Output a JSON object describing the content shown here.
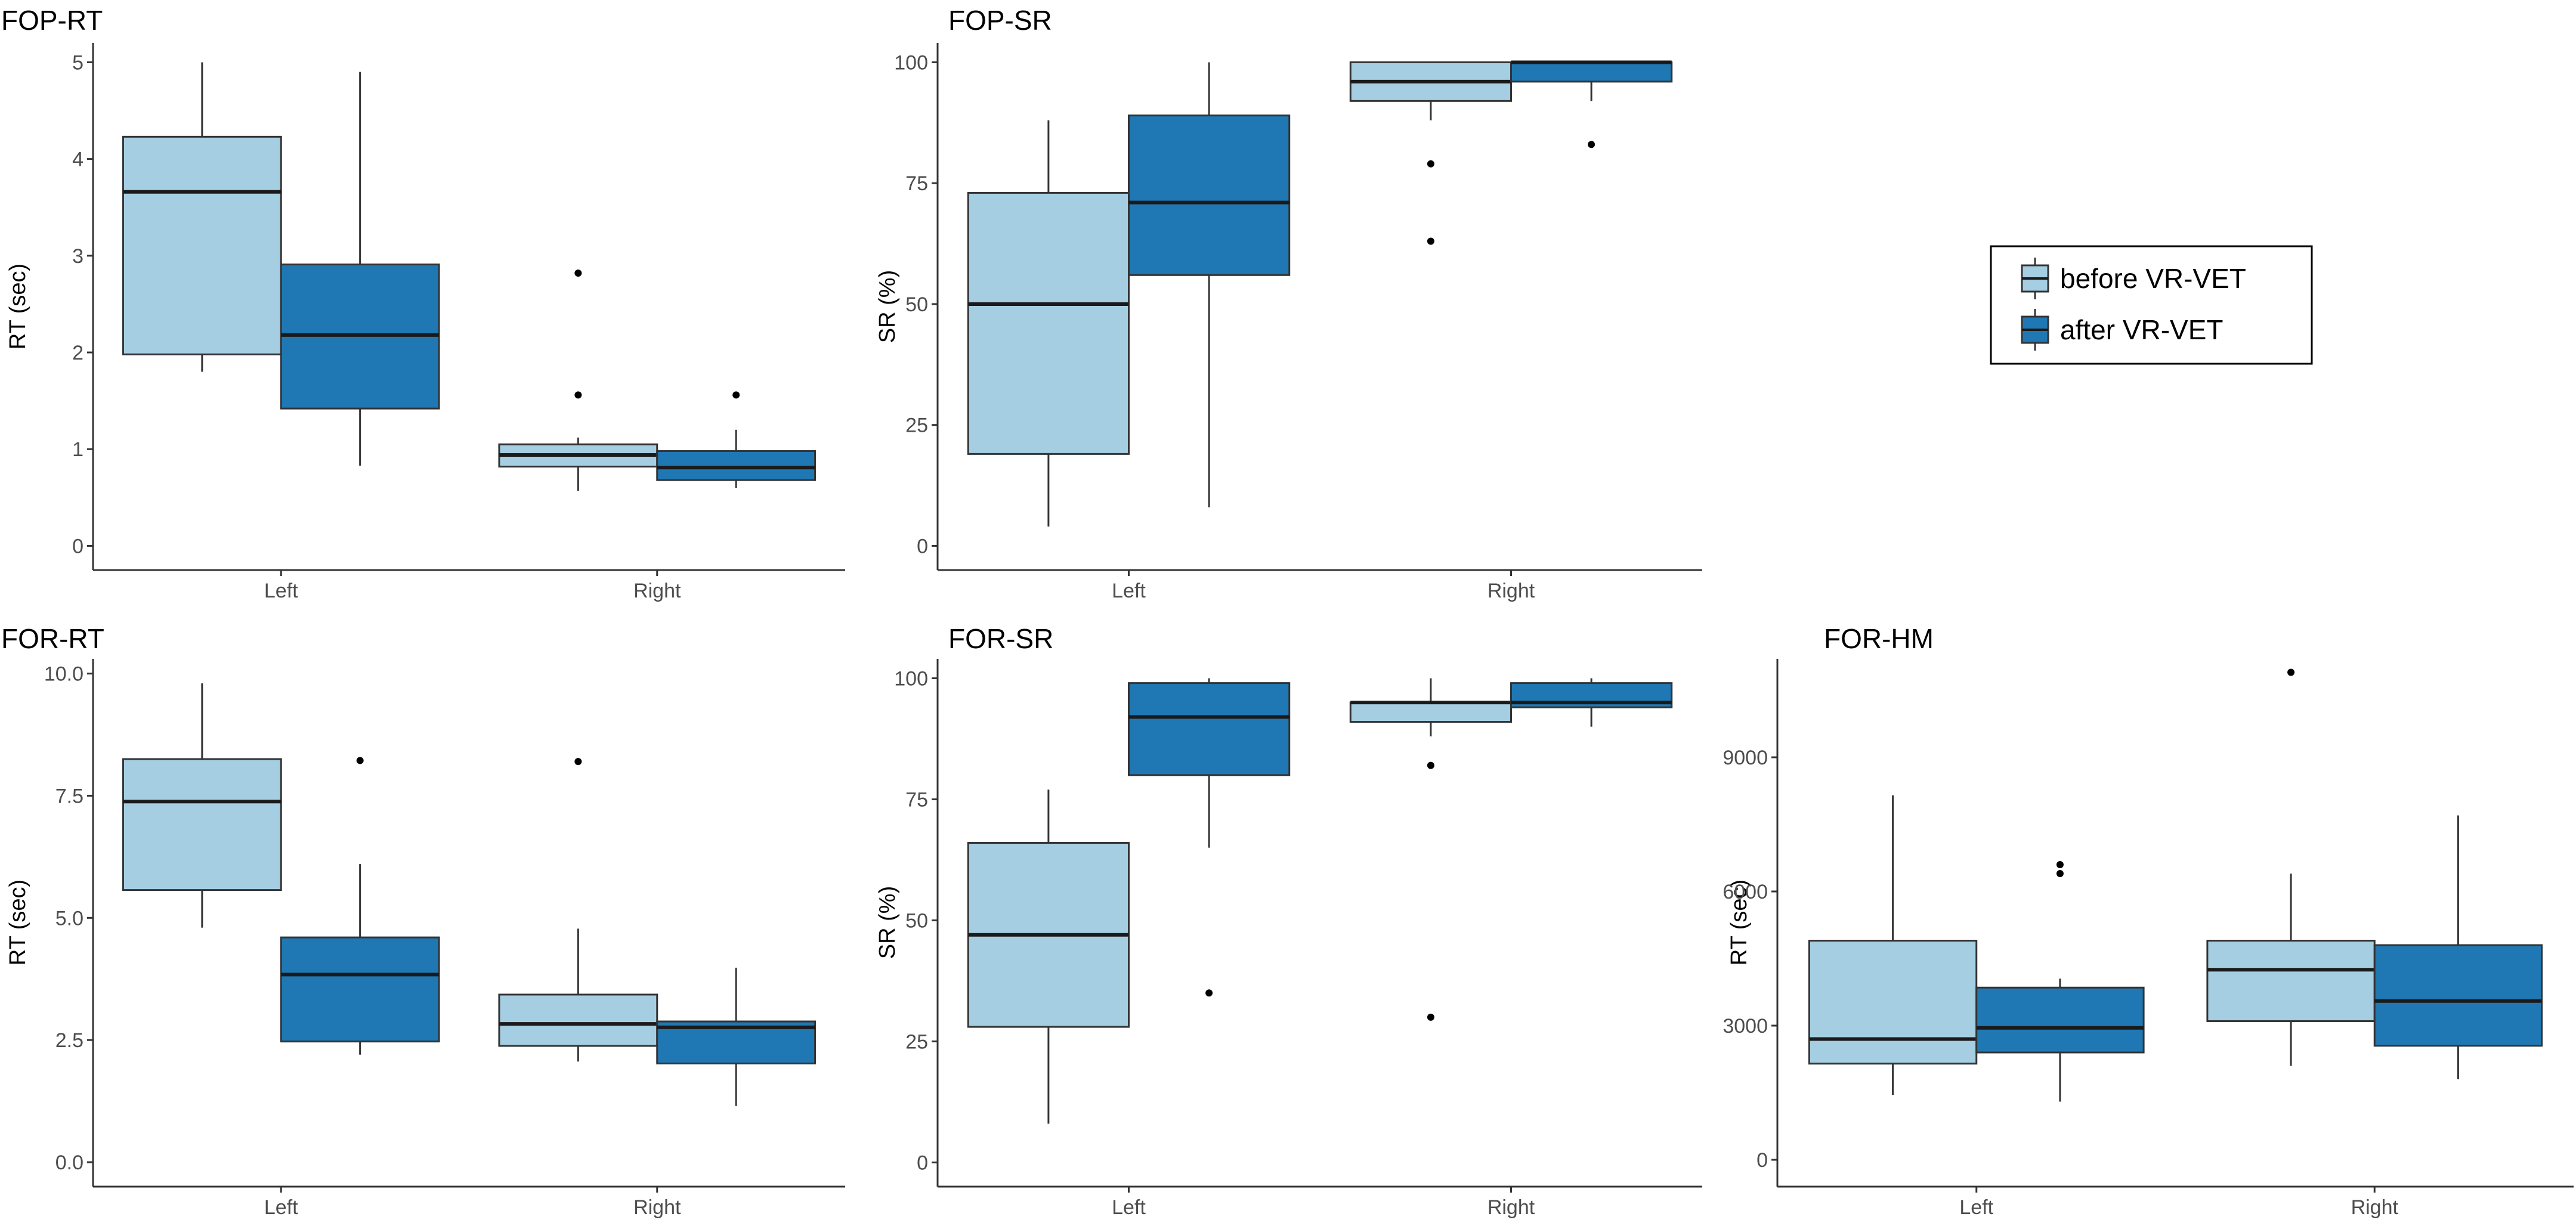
{
  "colors": {
    "before": "#a6cee3",
    "after": "#1f78b4",
    "axis": "#333333",
    "whisker": "#333333",
    "median": "#1a1a1a"
  },
  "legend": {
    "items": [
      {
        "key": "before",
        "label": "before VR-VET"
      },
      {
        "key": "after",
        "label": "after VR-VET"
      }
    ]
  },
  "chart_data": [
    {
      "type": "box",
      "title": "FOP-RT",
      "ylabel": "RT (sec)",
      "xlabel": "",
      "categories": [
        "Left",
        "Right"
      ],
      "ylim": [
        -0.25,
        5.2
      ],
      "yticks": [
        0,
        1,
        2,
        3,
        4,
        5
      ],
      "ytick_labels": [
        "0",
        "1",
        "2",
        "3",
        "4",
        "5"
      ],
      "series": [
        {
          "name": "before VR-VET",
          "key": "before",
          "boxes": [
            {
              "category": "Left",
              "min": 1.8,
              "q1": 1.98,
              "median": 3.66,
              "q3": 4.23,
              "max": 5.0,
              "outliers": []
            },
            {
              "category": "Right",
              "min": 0.57,
              "q1": 0.82,
              "median": 0.94,
              "q3": 1.05,
              "max": 1.12,
              "outliers": [
                2.82,
                1.56
              ]
            }
          ]
        },
        {
          "name": "after VR-VET",
          "key": "after",
          "boxes": [
            {
              "category": "Left",
              "min": 0.83,
              "q1": 1.42,
              "median": 2.18,
              "q3": 2.91,
              "max": 4.9,
              "outliers": []
            },
            {
              "category": "Right",
              "min": 0.6,
              "q1": 0.68,
              "median": 0.81,
              "q3": 0.98,
              "max": 1.2,
              "outliers": [
                1.56
              ]
            }
          ]
        }
      ]
    },
    {
      "type": "box",
      "title": "FOP-SR",
      "ylabel": "SR (%)",
      "xlabel": "",
      "categories": [
        "Left",
        "Right"
      ],
      "ylim": [
        -5,
        104
      ],
      "yticks": [
        0,
        25,
        50,
        75,
        100
      ],
      "ytick_labels": [
        "0",
        "25",
        "50",
        "75",
        "100"
      ],
      "series": [
        {
          "name": "before VR-VET",
          "key": "before",
          "boxes": [
            {
              "category": "Left",
              "min": 4,
              "q1": 19,
              "median": 50,
              "q3": 73,
              "max": 88,
              "outliers": []
            },
            {
              "category": "Right",
              "min": 88,
              "q1": 92,
              "median": 96,
              "q3": 100,
              "max": 100,
              "outliers": [
                79,
                63
              ]
            }
          ]
        },
        {
          "name": "after VR-VET",
          "key": "after",
          "boxes": [
            {
              "category": "Left",
              "min": 8,
              "q1": 56,
              "median": 71,
              "q3": 89,
              "max": 100,
              "outliers": []
            },
            {
              "category": "Right",
              "min": 92,
              "q1": 96,
              "median": 100,
              "q3": 100,
              "max": 100,
              "outliers": [
                83
              ]
            }
          ]
        }
      ]
    },
    {
      "type": "box",
      "title": "FOR-RT",
      "ylabel": "RT (sec)",
      "xlabel": "",
      "categories": [
        "Left",
        "Right"
      ],
      "ylim": [
        -0.5,
        10.3
      ],
      "yticks": [
        0,
        2.5,
        5,
        7.5,
        10
      ],
      "ytick_labels": [
        "0.0",
        "2.5",
        "5.0",
        "7.5",
        "10.0"
      ],
      "series": [
        {
          "name": "before VR-VET",
          "key": "before",
          "boxes": [
            {
              "category": "Left",
              "min": 4.8,
              "q1": 5.57,
              "median": 7.38,
              "q3": 8.25,
              "max": 9.8,
              "outliers": []
            },
            {
              "category": "Right",
              "min": 2.06,
              "q1": 2.38,
              "median": 2.83,
              "q3": 3.43,
              "max": 4.78,
              "outliers": [
                8.2
              ]
            }
          ]
        },
        {
          "name": "after VR-VET",
          "key": "after",
          "boxes": [
            {
              "category": "Left",
              "min": 2.2,
              "q1": 2.47,
              "median": 3.84,
              "q3": 4.6,
              "max": 6.1,
              "outliers": [
                8.22
              ]
            },
            {
              "category": "Right",
              "min": 1.15,
              "q1": 2.02,
              "median": 2.76,
              "q3": 2.88,
              "max": 3.98,
              "outliers": []
            }
          ]
        }
      ]
    },
    {
      "type": "box",
      "title": "FOR-SR",
      "ylabel": "SR (%)",
      "xlabel": "",
      "categories": [
        "Left",
        "Right"
      ],
      "ylim": [
        -5,
        104
      ],
      "yticks": [
        0,
        25,
        50,
        75,
        100
      ],
      "ytick_labels": [
        "0",
        "25",
        "50",
        "75",
        "100"
      ],
      "series": [
        {
          "name": "before VR-VET",
          "key": "before",
          "boxes": [
            {
              "category": "Left",
              "min": 8,
              "q1": 28,
              "median": 47,
              "q3": 66,
              "max": 77,
              "outliers": []
            },
            {
              "category": "Right",
              "min": 88,
              "q1": 91,
              "median": 95,
              "q3": 95,
              "max": 100,
              "outliers": [
                82,
                30
              ]
            }
          ]
        },
        {
          "name": "after VR-VET",
          "key": "after",
          "boxes": [
            {
              "category": "Left",
              "min": 65,
              "q1": 80,
              "median": 92,
              "q3": 99,
              "max": 100,
              "outliers": [
                35
              ]
            },
            {
              "category": "Right",
              "min": 90,
              "q1": 94,
              "median": 95,
              "q3": 99,
              "max": 100,
              "outliers": []
            }
          ]
        }
      ]
    },
    {
      "type": "box",
      "title": "FOR-HM",
      "ylabel": "RT (sec)",
      "xlabel": "",
      "categories": [
        "Left",
        "Right"
      ],
      "ylim": [
        -600,
        11200
      ],
      "yticks": [
        0,
        3000,
        6000,
        9000
      ],
      "ytick_labels": [
        "0",
        "3000",
        "6000",
        "9000"
      ],
      "series": [
        {
          "name": "before VR-VET",
          "key": "before",
          "boxes": [
            {
              "category": "Left",
              "min": 1450,
              "q1": 2150,
              "median": 2700,
              "q3": 4900,
              "max": 8150,
              "outliers": []
            },
            {
              "category": "Right",
              "min": 2100,
              "q1": 3100,
              "median": 4250,
              "q3": 4900,
              "max": 6400,
              "outliers": [
                10900
              ]
            }
          ]
        },
        {
          "name": "after VR-VET",
          "key": "after",
          "boxes": [
            {
              "category": "Left",
              "min": 1300,
              "q1": 2400,
              "median": 2950,
              "q3": 3850,
              "max": 4050,
              "outliers": [
                6600,
                6400
              ]
            },
            {
              "category": "Right",
              "min": 1800,
              "q1": 2550,
              "median": 3550,
              "q3": 4800,
              "max": 7700,
              "outliers": []
            }
          ]
        }
      ]
    }
  ]
}
